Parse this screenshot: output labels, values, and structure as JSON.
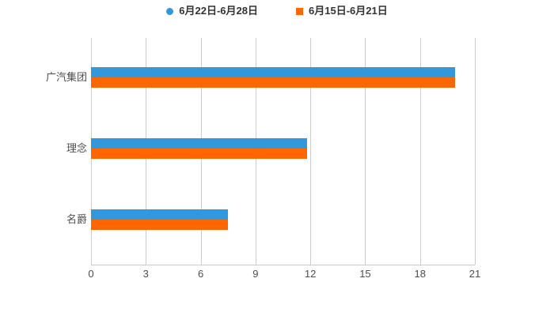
{
  "page": {
    "background": "#ffffff"
  },
  "chart_data": {
    "type": "bar",
    "orientation": "horizontal",
    "title": "",
    "categories": [
      "广汽集团",
      "理念",
      "名爵"
    ],
    "series": [
      {
        "name": "6月22日-6月28日",
        "color": "#3398db",
        "marker": "circle",
        "values": [
          19.9,
          11.8,
          7.5
        ]
      },
      {
        "name": "6月15日-6月21日",
        "color": "#ff6600",
        "marker": "square",
        "values": [
          19.9,
          11.8,
          7.5
        ]
      }
    ],
    "xlabel": "",
    "ylabel": "",
    "xlim": [
      0,
      21
    ],
    "xticks": [
      0,
      3,
      6,
      9,
      12,
      15,
      18,
      21
    ],
    "grid": true,
    "legend_position": "top",
    "colors": {
      "gridline": "#cccccc",
      "axis_line": "#cccccc",
      "tick_label": "#4d4d4d",
      "category_label": "#4d4d4d",
      "legend_label": "#333333"
    }
  }
}
